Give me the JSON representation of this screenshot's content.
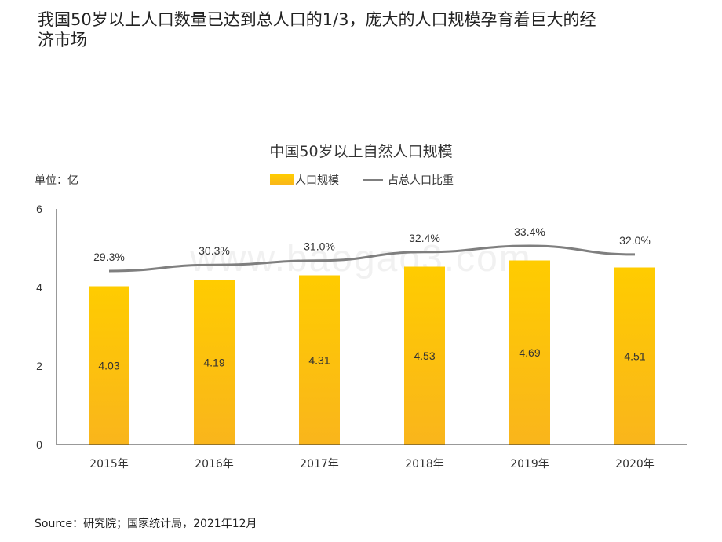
{
  "page": {
    "title": "我国50岁以上人口数量已达到总人口的1/3，庞大的人口规模孕育着巨大的经济市场",
    "unit": "单位：亿",
    "source": "Source：研究院；国家统计局，2021年12月",
    "watermark": "www.baogao3.com"
  },
  "chart_data": {
    "type": "bar",
    "title": "中国50岁以上自然人口规模",
    "categories": [
      "2015年",
      "2016年",
      "2017年",
      "2018年",
      "2019年",
      "2020年"
    ],
    "series": [
      {
        "name": "人口规模",
        "type": "bar",
        "values": [
          4.03,
          4.19,
          4.31,
          4.53,
          4.69,
          4.51
        ],
        "labels": [
          "4.03",
          "4.19",
          "4.31",
          "4.53",
          "4.69",
          "4.51"
        ]
      },
      {
        "name": "占总人口比重",
        "type": "line",
        "values": [
          29.3,
          30.3,
          31.0,
          32.4,
          33.4,
          32.0
        ],
        "labels": [
          "29.3%",
          "30.3%",
          "31.0%",
          "32.4%",
          "33.4%",
          "32.0%"
        ]
      }
    ],
    "ylim": [
      0,
      6
    ],
    "yticks": [
      "0",
      "2",
      "4",
      "6"
    ],
    "colors": {
      "bar_top": "#ffcc00",
      "bar_bottom": "#f9b51c",
      "line": "#7f7f7f",
      "axis": "#333333"
    }
  }
}
